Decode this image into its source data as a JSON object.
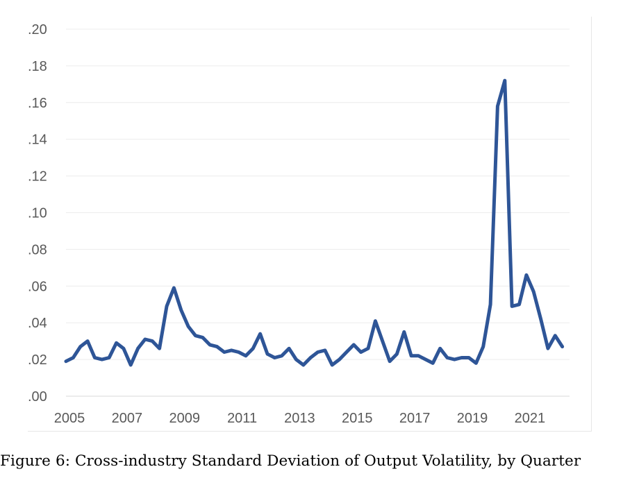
{
  "caption": "Figure 6: Cross-industry Standard Deviation of Output Volatility, by Quarter",
  "chart_data": {
    "type": "line",
    "title": "",
    "xlabel": "",
    "ylabel": "",
    "ylim": [
      0,
      0.2
    ],
    "xlim": [
      2005,
      2022.5
    ],
    "y_ticks": [
      0.0,
      0.02,
      0.04,
      0.06,
      0.08,
      0.1,
      0.12,
      0.14,
      0.16,
      0.18,
      0.2
    ],
    "y_tick_labels": [
      ".00",
      ".02",
      ".04",
      ".06",
      ".08",
      ".10",
      ".12",
      ".14",
      ".16",
      ".18",
      ".20"
    ],
    "x_ticks": [
      2005,
      2007,
      2009,
      2011,
      2013,
      2015,
      2017,
      2019,
      2021
    ],
    "x_tick_labels": [
      "2005",
      "2007",
      "2009",
      "2011",
      "2013",
      "2015",
      "2017",
      "2019",
      "2021"
    ],
    "grid": true,
    "line_color": "#2e5597",
    "series": [
      {
        "x": [
          2005.0,
          2005.25,
          2005.5,
          2005.75,
          2006.0,
          2006.25,
          2006.5,
          2006.75,
          2007.0,
          2007.25,
          2007.5,
          2007.75,
          2008.0,
          2008.25,
          2008.5,
          2008.75,
          2009.0,
          2009.25,
          2009.5,
          2009.75,
          2010.0,
          2010.25,
          2010.5,
          2010.75,
          2011.0,
          2011.25,
          2011.5,
          2011.75,
          2012.0,
          2012.25,
          2012.5,
          2012.75,
          2013.0,
          2013.25,
          2013.5,
          2013.75,
          2014.0,
          2014.25,
          2014.5,
          2014.75,
          2015.0,
          2015.25,
          2015.5,
          2015.75,
          2016.0,
          2016.25,
          2016.5,
          2016.75,
          2017.0,
          2017.25,
          2017.5,
          2017.75,
          2018.0,
          2018.25,
          2018.5,
          2018.75,
          2019.0,
          2019.25,
          2019.5,
          2019.75,
          2020.0,
          2020.25,
          2020.5,
          2020.75,
          2021.0,
          2021.25,
          2021.5,
          2021.75,
          2022.0,
          2022.25
        ],
        "values": [
          0.019,
          0.021,
          0.027,
          0.03,
          0.021,
          0.02,
          0.021,
          0.029,
          0.026,
          0.017,
          0.026,
          0.031,
          0.03,
          0.026,
          0.049,
          0.059,
          0.047,
          0.038,
          0.033,
          0.032,
          0.028,
          0.027,
          0.024,
          0.025,
          0.024,
          0.022,
          0.026,
          0.034,
          0.023,
          0.021,
          0.022,
          0.026,
          0.02,
          0.017,
          0.021,
          0.024,
          0.025,
          0.017,
          0.02,
          0.024,
          0.028,
          0.024,
          0.026,
          0.041,
          0.03,
          0.019,
          0.023,
          0.035,
          0.022,
          0.022,
          0.02,
          0.018,
          0.026,
          0.021,
          0.02,
          0.021,
          0.021,
          0.018,
          0.027,
          0.05,
          0.158,
          0.172,
          0.049,
          0.05,
          0.066,
          0.057,
          0.042,
          0.026,
          0.033,
          0.027
        ]
      }
    ]
  }
}
